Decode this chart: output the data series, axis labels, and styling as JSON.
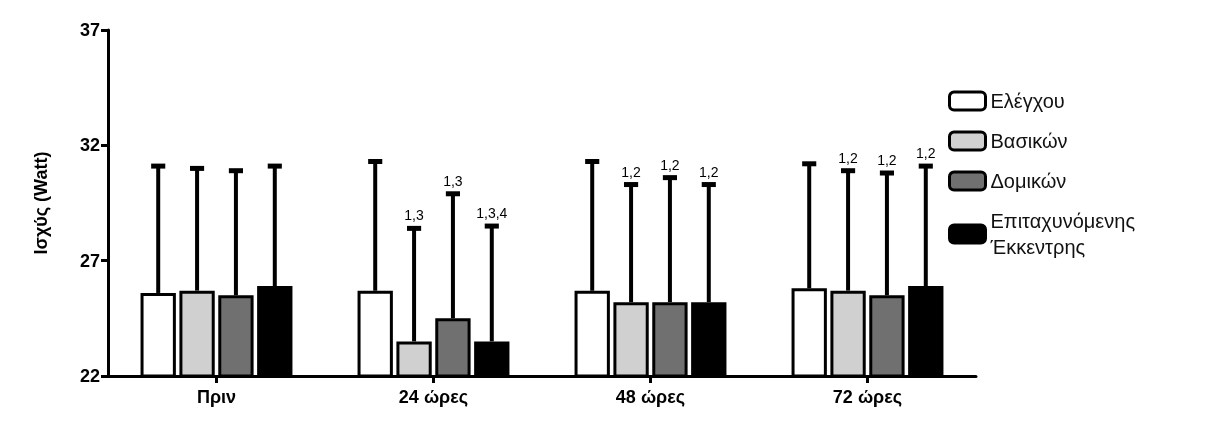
{
  "chart_data": {
    "type": "bar",
    "ylabel": "Ισχύς (Watt)",
    "categories": [
      "Πριν",
      "24 ώρες",
      "48 ώρες",
      "72 ώρες"
    ],
    "series": [
      {
        "name": "Ελέγχου",
        "color": "#ffffff",
        "values": [
          25.6,
          25.7,
          25.7,
          25.8
        ],
        "errors": [
          [
            25.6,
            31.1
          ],
          [
            25.7,
            31.3
          ],
          [
            25.7,
            31.3
          ],
          [
            25.8,
            31.2
          ]
        ]
      },
      {
        "name": "Βασικών",
        "color": "#d0d0d0",
        "values": [
          25.7,
          23.5,
          25.2,
          25.7
        ],
        "errors": [
          [
            25.7,
            31.0
          ],
          [
            23.5,
            28.4
          ],
          [
            25.2,
            30.3
          ],
          [
            25.7,
            30.9
          ]
        ]
      },
      {
        "name": "Δομικών",
        "color": "#707070",
        "values": [
          25.5,
          24.5,
          25.2,
          25.5
        ],
        "errors": [
          [
            25.5,
            30.9
          ],
          [
            24.5,
            29.9
          ],
          [
            25.2,
            30.6
          ],
          [
            25.5,
            30.8
          ]
        ]
      },
      {
        "name": "Επιταχυνόμενης\nΈκκεντρης",
        "color": "#000000",
        "values": [
          25.9,
          23.5,
          25.2,
          25.9
        ],
        "errors": [
          [
            25.9,
            31.1
          ],
          [
            23.5,
            28.5
          ],
          [
            25.2,
            30.3
          ],
          [
            25.9,
            31.1
          ]
        ]
      }
    ],
    "annotations": [
      "1,3",
      "1,3",
      "1,3,4",
      "1,2",
      "1,2",
      "1,2",
      "1,2",
      "1,2",
      "1,2"
    ],
    "ylim": [
      22,
      37
    ],
    "yticks": [
      22,
      27,
      32,
      37
    ],
    "grid": false,
    "legend": "right"
  }
}
